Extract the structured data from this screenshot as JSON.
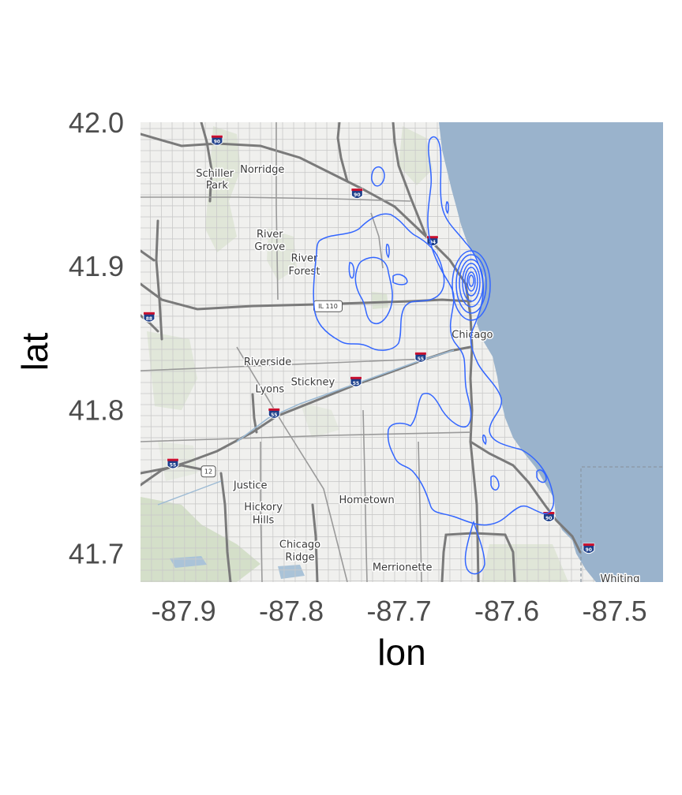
{
  "chart_data": {
    "type": "map-density-contour",
    "xlabel": "lon",
    "ylabel": "lat",
    "xlim": [
      -87.94,
      -87.455
    ],
    "ylim": [
      41.68,
      42.0
    ],
    "x_ticks": [
      {
        "value": -87.9,
        "label": "-87.9"
      },
      {
        "value": -87.8,
        "label": "-87.8"
      },
      {
        "value": -87.7,
        "label": "-87.7"
      },
      {
        "value": -87.6,
        "label": "-87.6"
      },
      {
        "value": -87.5,
        "label": "-87.5"
      }
    ],
    "y_ticks": [
      {
        "value": 42.0,
        "label": "42.0"
      },
      {
        "value": 41.9,
        "label": "41.9"
      },
      {
        "value": 41.8,
        "label": "41.8"
      },
      {
        "value": 41.7,
        "label": "41.7"
      }
    ],
    "contour_color": "#3366ff",
    "density_peak": {
      "lon": -87.627,
      "lat": 41.888
    },
    "lake_color": "#9ab3cc",
    "land_color": "#f0f0ee",
    "places": [
      {
        "name": "Norridge",
        "lon": -87.827,
        "lat": 41.965
      },
      {
        "name": "Schiller",
        "lon": -87.871,
        "lat": 41.962
      },
      {
        "name": "Park",
        "lon": -87.869,
        "lat": 41.954
      },
      {
        "name": "River",
        "lon": -87.82,
        "lat": 41.92
      },
      {
        "name": "Grove",
        "lon": -87.82,
        "lat": 41.911
      },
      {
        "name": "River",
        "lon": -87.788,
        "lat": 41.903
      },
      {
        "name": "Forest",
        "lon": -87.788,
        "lat": 41.894
      },
      {
        "name": "Chicago",
        "lon": -87.632,
        "lat": 41.85
      },
      {
        "name": "Riverside",
        "lon": -87.822,
        "lat": 41.831
      },
      {
        "name": "Stickney",
        "lon": -87.78,
        "lat": 41.817
      },
      {
        "name": "Lyons",
        "lon": -87.82,
        "lat": 41.812
      },
      {
        "name": "Justice",
        "lon": -87.838,
        "lat": 41.745
      },
      {
        "name": "Hickory",
        "lon": -87.826,
        "lat": 41.73
      },
      {
        "name": "Hills",
        "lon": -87.826,
        "lat": 41.721
      },
      {
        "name": "Hometown",
        "lon": -87.73,
        "lat": 41.735
      },
      {
        "name": "Chicago",
        "lon": -87.792,
        "lat": 41.704
      },
      {
        "name": "Ridge",
        "lon": -87.792,
        "lat": 41.695
      },
      {
        "name": "Merrionette",
        "lon": -87.697,
        "lat": 41.688
      },
      {
        "name": "Whiting",
        "lon": -87.495,
        "lat": 41.68
      }
    ],
    "road_shields": [
      {
        "label": "90",
        "lon": -87.869,
        "lat": 41.987
      },
      {
        "label": "90",
        "lon": -87.739,
        "lat": 41.95
      },
      {
        "label": "94",
        "lon": -87.669,
        "lat": 41.917
      },
      {
        "label": "88",
        "lon": -87.932,
        "lat": 41.864
      },
      {
        "label": "55",
        "lon": -87.68,
        "lat": 41.836
      },
      {
        "label": "55",
        "lon": -87.74,
        "lat": 41.819
      },
      {
        "label": "55",
        "lon": -87.816,
        "lat": 41.797
      },
      {
        "label": "55",
        "lon": -87.91,
        "lat": 41.762
      },
      {
        "label": "90",
        "lon": -87.561,
        "lat": 41.725
      },
      {
        "label": "90",
        "lon": -87.524,
        "lat": 41.703
      }
    ],
    "route_badges": [
      {
        "label": "IL 110",
        "lon": -87.766,
        "lat": 41.872
      },
      {
        "label": "12",
        "lon": -87.877,
        "lat": 41.757
      }
    ]
  }
}
